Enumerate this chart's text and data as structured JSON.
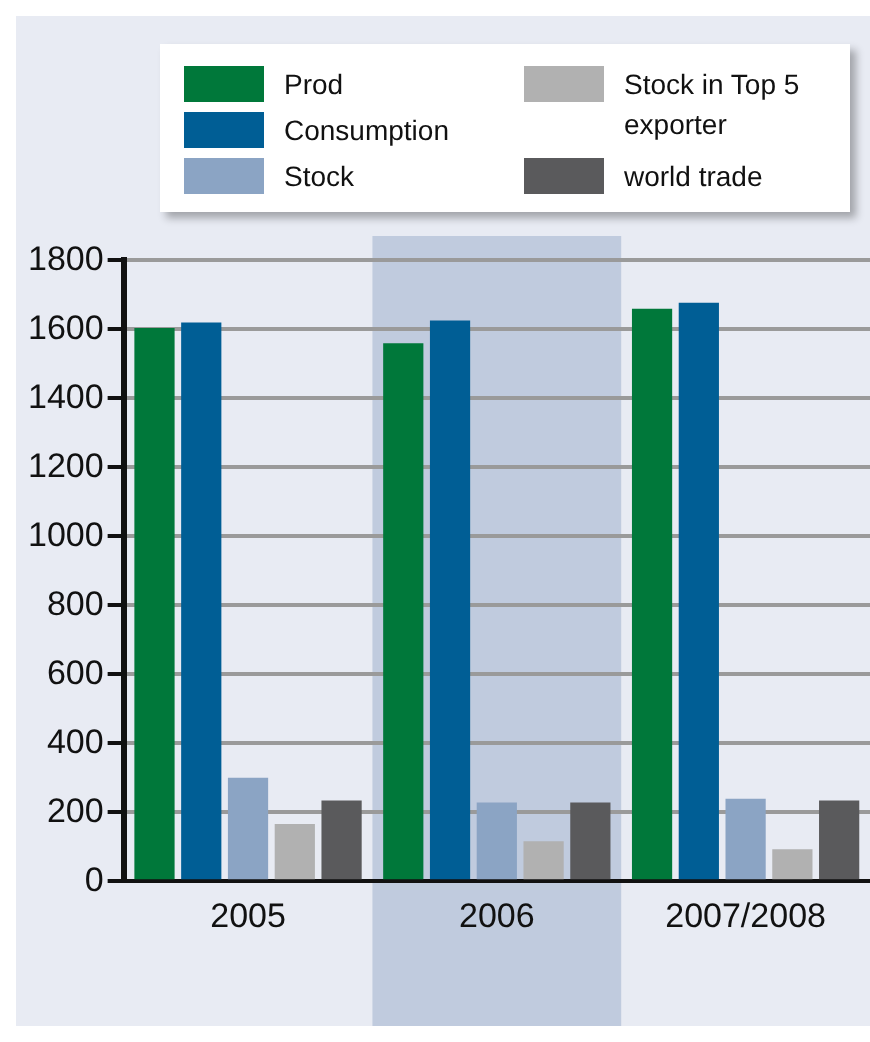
{
  "chart_data": {
    "type": "bar",
    "categories": [
      "2005",
      "2006",
      "2007/2008"
    ],
    "series": [
      {
        "name": "Prod",
        "color": "#00783a",
        "values": [
          1604,
          1560,
          1660
        ]
      },
      {
        "name": "Consumption",
        "color": "#005e95",
        "values": [
          1620,
          1626,
          1677
        ]
      },
      {
        "name": "Stock",
        "color": "#8ba4c4",
        "values": [
          300,
          228,
          239
        ]
      },
      {
        "name": "Stock in Top 5 exporter",
        "color": "#b1b1b1",
        "values": [
          166,
          116,
          93
        ]
      },
      {
        "name": "world trade",
        "color": "#5a5a5c",
        "values": [
          234,
          228,
          234
        ]
      }
    ],
    "ylim": [
      0,
      1800
    ],
    "yticks": [
      0,
      200,
      400,
      600,
      800,
      1000,
      1200,
      1400,
      1600,
      1800
    ],
    "grid": "y",
    "legend": "top",
    "bands": [
      {
        "axis": "x",
        "from": "2006",
        "to": "2006",
        "color": "#c0cbde"
      }
    ]
  }
}
